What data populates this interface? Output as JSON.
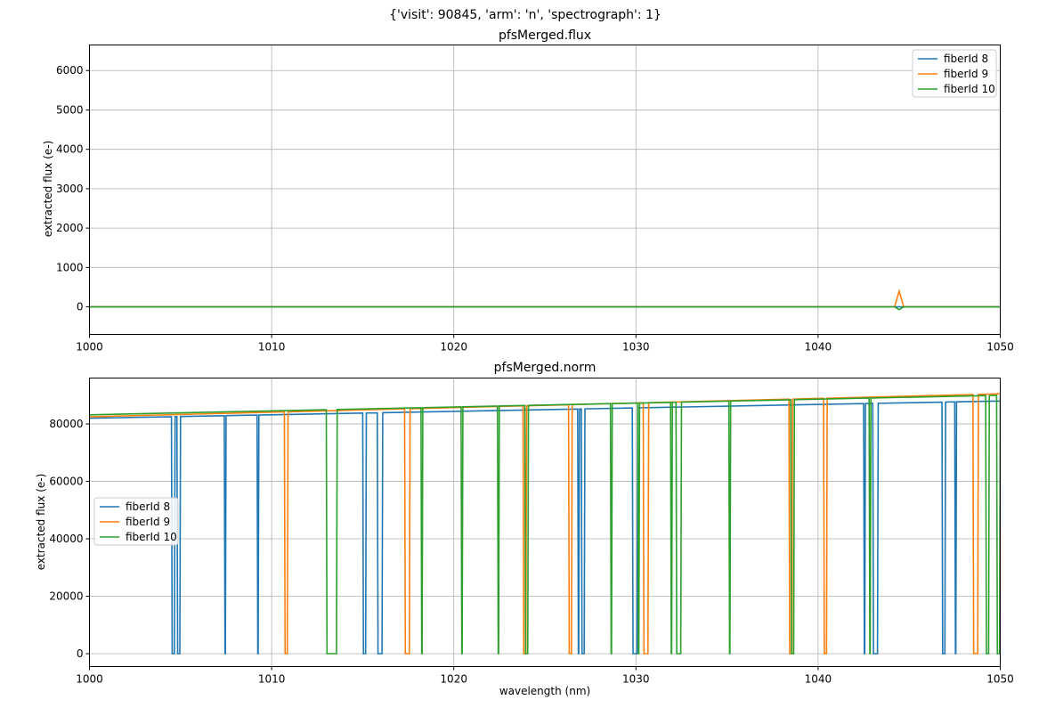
{
  "figure": {
    "suptitle": "{'visit': 90845, 'arm': 'n', 'spectrograph': 1}"
  },
  "chart_data": [
    {
      "type": "line",
      "title": "pfsMerged.flux",
      "xlabel": "",
      "ylabel": "extracted flux (e-)",
      "xlim": [
        1000,
        1050
      ],
      "ylim": [
        -700,
        6650
      ],
      "xticks": [
        1000,
        1010,
        1020,
        1030,
        1040,
        1050
      ],
      "yticks": [
        0,
        1000,
        2000,
        3000,
        4000,
        5000,
        6000
      ],
      "grid": true,
      "legend": "top-right",
      "series": [
        {
          "name": "fiberId 8",
          "color": "#1f77b4",
          "points": [
            [
              1000,
              0
            ],
            [
              1050,
              0
            ]
          ]
        },
        {
          "name": "fiberId 9",
          "color": "#ff7f0e",
          "points": [
            [
              1000,
              0
            ],
            [
              1044.2,
              0
            ],
            [
              1044.45,
              400
            ],
            [
              1044.7,
              0
            ],
            [
              1050,
              0
            ]
          ]
        },
        {
          "name": "fiberId 10",
          "color": "#2ca02c",
          "points": [
            [
              1000,
              0
            ],
            [
              1044.2,
              0
            ],
            [
              1044.45,
              -70
            ],
            [
              1044.7,
              0
            ],
            [
              1050,
              0
            ]
          ]
        }
      ]
    },
    {
      "type": "line",
      "title": "pfsMerged.norm",
      "xlabel": "wavelength (nm)",
      "ylabel": "extracted flux (e-)",
      "xlim": [
        1000,
        1050
      ],
      "ylim": [
        -4500,
        96000
      ],
      "xticks": [
        1000,
        1010,
        1020,
        1030,
        1040,
        1050
      ],
      "yticks": [
        0,
        20000,
        40000,
        60000,
        80000
      ],
      "grid": true,
      "legend": "center-left",
      "series": [
        {
          "name": "fiberId 8",
          "color": "#1f77b4",
          "start": 82000,
          "end": 88000,
          "gaps": [
            [
              1004.5,
              1004.7
            ],
            [
              1004.8,
              1005.0
            ],
            [
              1007.4,
              1007.5
            ],
            [
              1009.2,
              1009.3
            ],
            [
              1015.0,
              1015.2
            ],
            [
              1015.8,
              1016.1
            ],
            [
              1026.8,
              1026.9
            ],
            [
              1027.0,
              1027.2
            ],
            [
              1029.8,
              1030.1
            ],
            [
              1042.5,
              1042.6
            ],
            [
              1043.0,
              1043.3
            ],
            [
              1046.8,
              1047.0
            ],
            [
              1047.5,
              1047.6
            ]
          ]
        },
        {
          "name": "fiberId 9",
          "color": "#ff7f0e",
          "start": 82500,
          "end": 90500,
          "gaps": [
            [
              1010.7,
              1010.9
            ],
            [
              1017.3,
              1017.6
            ],
            [
              1023.8,
              1024.0
            ],
            [
              1026.3,
              1026.5
            ],
            [
              1030.4,
              1030.7
            ],
            [
              1038.4,
              1038.6
            ],
            [
              1040.3,
              1040.5
            ],
            [
              1048.5,
              1048.8
            ]
          ]
        },
        {
          "name": "fiberId 10",
          "color": "#2ca02c",
          "start": 83200,
          "end": 90000,
          "gaps": [
            [
              1013.0,
              1013.6
            ],
            [
              1018.2,
              1018.3
            ],
            [
              1020.4,
              1020.5
            ],
            [
              1022.4,
              1022.5
            ],
            [
              1023.9,
              1024.1
            ],
            [
              1028.6,
              1028.7
            ],
            [
              1030.1,
              1030.2
            ],
            [
              1031.9,
              1032.0
            ],
            [
              1032.2,
              1032.5
            ],
            [
              1035.1,
              1035.2
            ],
            [
              1038.5,
              1038.7
            ],
            [
              1042.8,
              1042.9
            ],
            [
              1049.2,
              1049.4
            ],
            [
              1049.8,
              1050.0
            ]
          ]
        }
      ]
    }
  ]
}
